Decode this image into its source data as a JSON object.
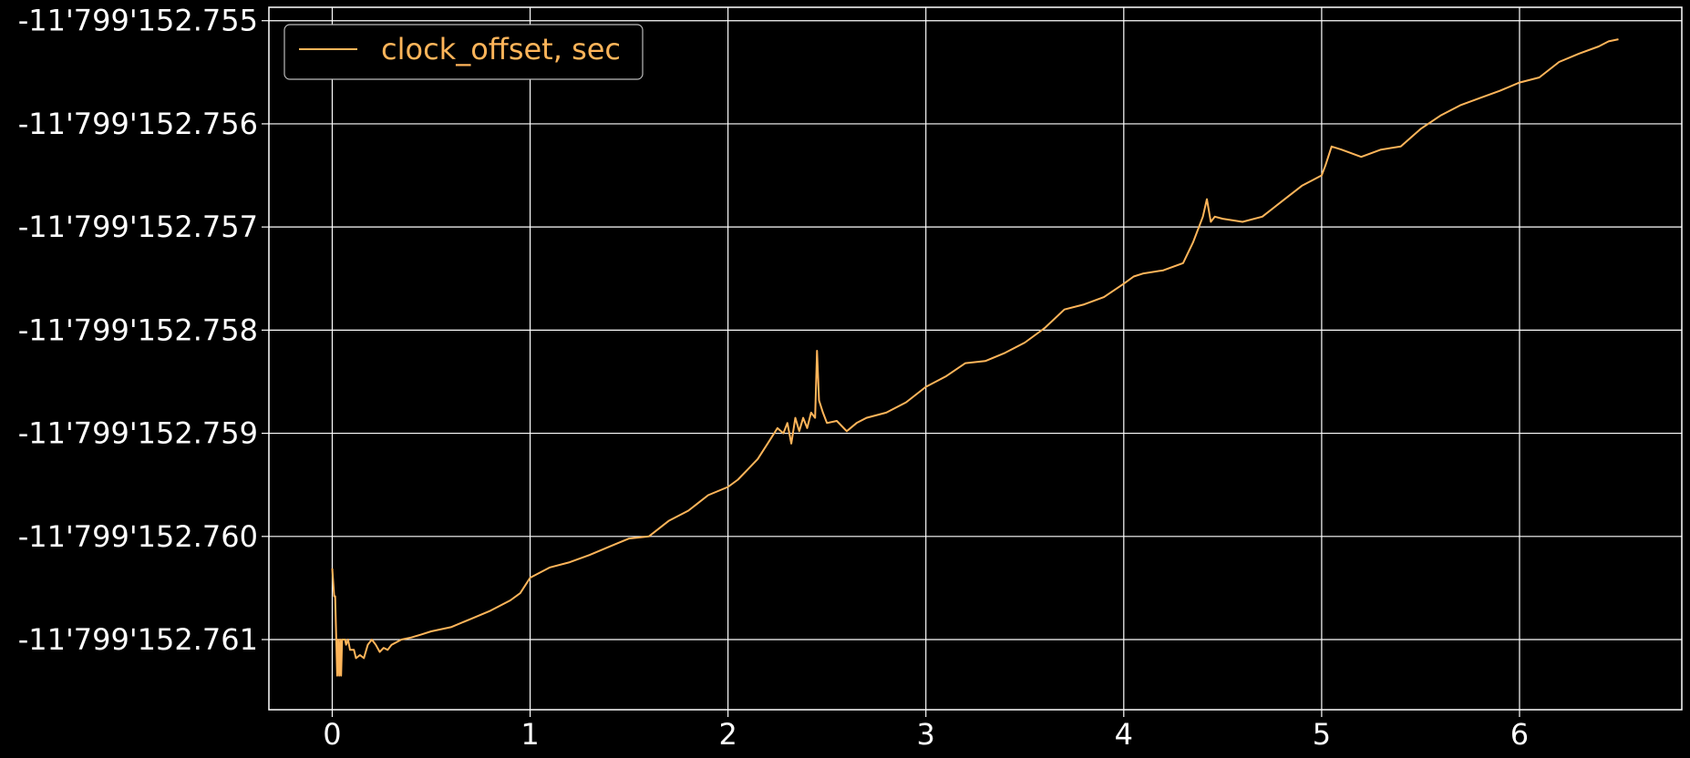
{
  "chart_data": {
    "type": "line",
    "title": "",
    "xlabel": "",
    "ylabel": "",
    "xlim": [
      -0.32,
      6.82
    ],
    "ylim": [
      -11799152.76168,
      -11799152.75487
    ],
    "grid": true,
    "background": "#000000",
    "grid_color": "#ffffff",
    "xticks": [
      0,
      1,
      2,
      3,
      4,
      5,
      6
    ],
    "xtick_labels": [
      "0",
      "1",
      "2",
      "3",
      "4",
      "5",
      "6"
    ],
    "yticks": [
      -11799152.761,
      -11799152.76,
      -11799152.759,
      -11799152.758,
      -11799152.757,
      -11799152.756,
      -11799152.755
    ],
    "ytick_labels": [
      "-11'799'152.761",
      "-11'799'152.760",
      "-11'799'152.759",
      "-11'799'152.758",
      "-11'799'152.757",
      "-11'799'152.756",
      "-11'799'152.755"
    ],
    "legend": {
      "placement": "top-left"
    },
    "series": [
      {
        "name": "clock_offset, sec",
        "color": "#ffb55a",
        "x": [
          0,
          0.01,
          0.015,
          0.025,
          0.03,
          0.035,
          0.04,
          0.045,
          0.05,
          0.055,
          0.06,
          0.065,
          0.07,
          0.08,
          0.09,
          0.1,
          0.11,
          0.12,
          0.14,
          0.16,
          0.18,
          0.2,
          0.22,
          0.24,
          0.26,
          0.28,
          0.3,
          0.35,
          0.4,
          0.45,
          0.5,
          0.6,
          0.7,
          0.8,
          0.9,
          0.95,
          1.0,
          1.1,
          1.2,
          1.3,
          1.4,
          1.5,
          1.6,
          1.7,
          1.8,
          1.9,
          2.0,
          2.05,
          2.1,
          2.15,
          2.2,
          2.25,
          2.28,
          2.3,
          2.32,
          2.34,
          2.36,
          2.38,
          2.4,
          2.42,
          2.44,
          2.45,
          2.46,
          2.48,
          2.5,
          2.55,
          2.6,
          2.65,
          2.7,
          2.8,
          2.9,
          3.0,
          3.1,
          3.2,
          3.3,
          3.4,
          3.5,
          3.6,
          3.7,
          3.8,
          3.9,
          4.0,
          4.05,
          4.1,
          4.2,
          4.3,
          4.35,
          4.38,
          4.4,
          4.42,
          4.44,
          4.46,
          4.5,
          4.6,
          4.7,
          4.8,
          4.9,
          4.95,
          5.0,
          5.02,
          5.05,
          5.1,
          5.2,
          5.3,
          5.4,
          5.5,
          5.6,
          5.7,
          5.8,
          5.9,
          6.0,
          6.1,
          6.2,
          6.3,
          6.4,
          6.45,
          6.5
        ],
        "values": [
          -11799152.76031,
          -11799152.76058,
          -11799152.76058,
          -11799152.76135,
          -11799152.761,
          -11799152.76135,
          -11799152.761,
          -11799152.76135,
          -11799152.761,
          -11799152.761,
          -11799152.761,
          -11799152.761,
          -11799152.76105,
          -11799152.761,
          -11799152.7611,
          -11799152.7611,
          -11799152.7611,
          -11799152.76118,
          -11799152.76115,
          -11799152.76118,
          -11799152.76105,
          -11799152.761,
          -11799152.76105,
          -11799152.76112,
          -11799152.76108,
          -11799152.7611,
          -11799152.76105,
          -11799152.761,
          -11799152.76098,
          -11799152.76095,
          -11799152.76092,
          -11799152.76088,
          -11799152.7608,
          -11799152.76072,
          -11799152.76062,
          -11799152.76055,
          -11799152.7604,
          -11799152.7603,
          -11799152.76025,
          -11799152.76018,
          -11799152.7601,
          -11799152.76002,
          -11799152.76,
          -11799152.75985,
          -11799152.75975,
          -11799152.7596,
          -11799152.75952,
          -11799152.75945,
          -11799152.75935,
          -11799152.75925,
          -11799152.7591,
          -11799152.75895,
          -11799152.759,
          -11799152.7589,
          -11799152.7591,
          -11799152.75885,
          -11799152.75898,
          -11799152.75885,
          -11799152.75895,
          -11799152.7588,
          -11799152.75885,
          -11799152.7582,
          -11799152.75868,
          -11799152.7588,
          -11799152.7589,
          -11799152.75888,
          -11799152.75898,
          -11799152.7589,
          -11799152.75885,
          -11799152.7588,
          -11799152.7587,
          -11799152.75855,
          -11799152.75845,
          -11799152.75832,
          -11799152.7583,
          -11799152.75822,
          -11799152.75812,
          -11799152.75798,
          -11799152.7578,
          -11799152.75775,
          -11799152.75768,
          -11799152.75755,
          -11799152.75748,
          -11799152.75745,
          -11799152.75742,
          -11799152.75735,
          -11799152.75715,
          -11799152.757,
          -11799152.7569,
          -11799152.75673,
          -11799152.75695,
          -11799152.7569,
          -11799152.75692,
          -11799152.75695,
          -11799152.7569,
          -11799152.75675,
          -11799152.7566,
          -11799152.75655,
          -11799152.7565,
          -11799152.7564,
          -11799152.75622,
          -11799152.75625,
          -11799152.75632,
          -11799152.75625,
          -11799152.75622,
          -11799152.75605,
          -11799152.75592,
          -11799152.75582,
          -11799152.75575,
          -11799152.75568,
          -11799152.7556,
          -11799152.75555,
          -11799152.7554,
          -11799152.75532,
          -11799152.75525,
          -11799152.7552,
          -11799152.75518
        ]
      }
    ]
  }
}
